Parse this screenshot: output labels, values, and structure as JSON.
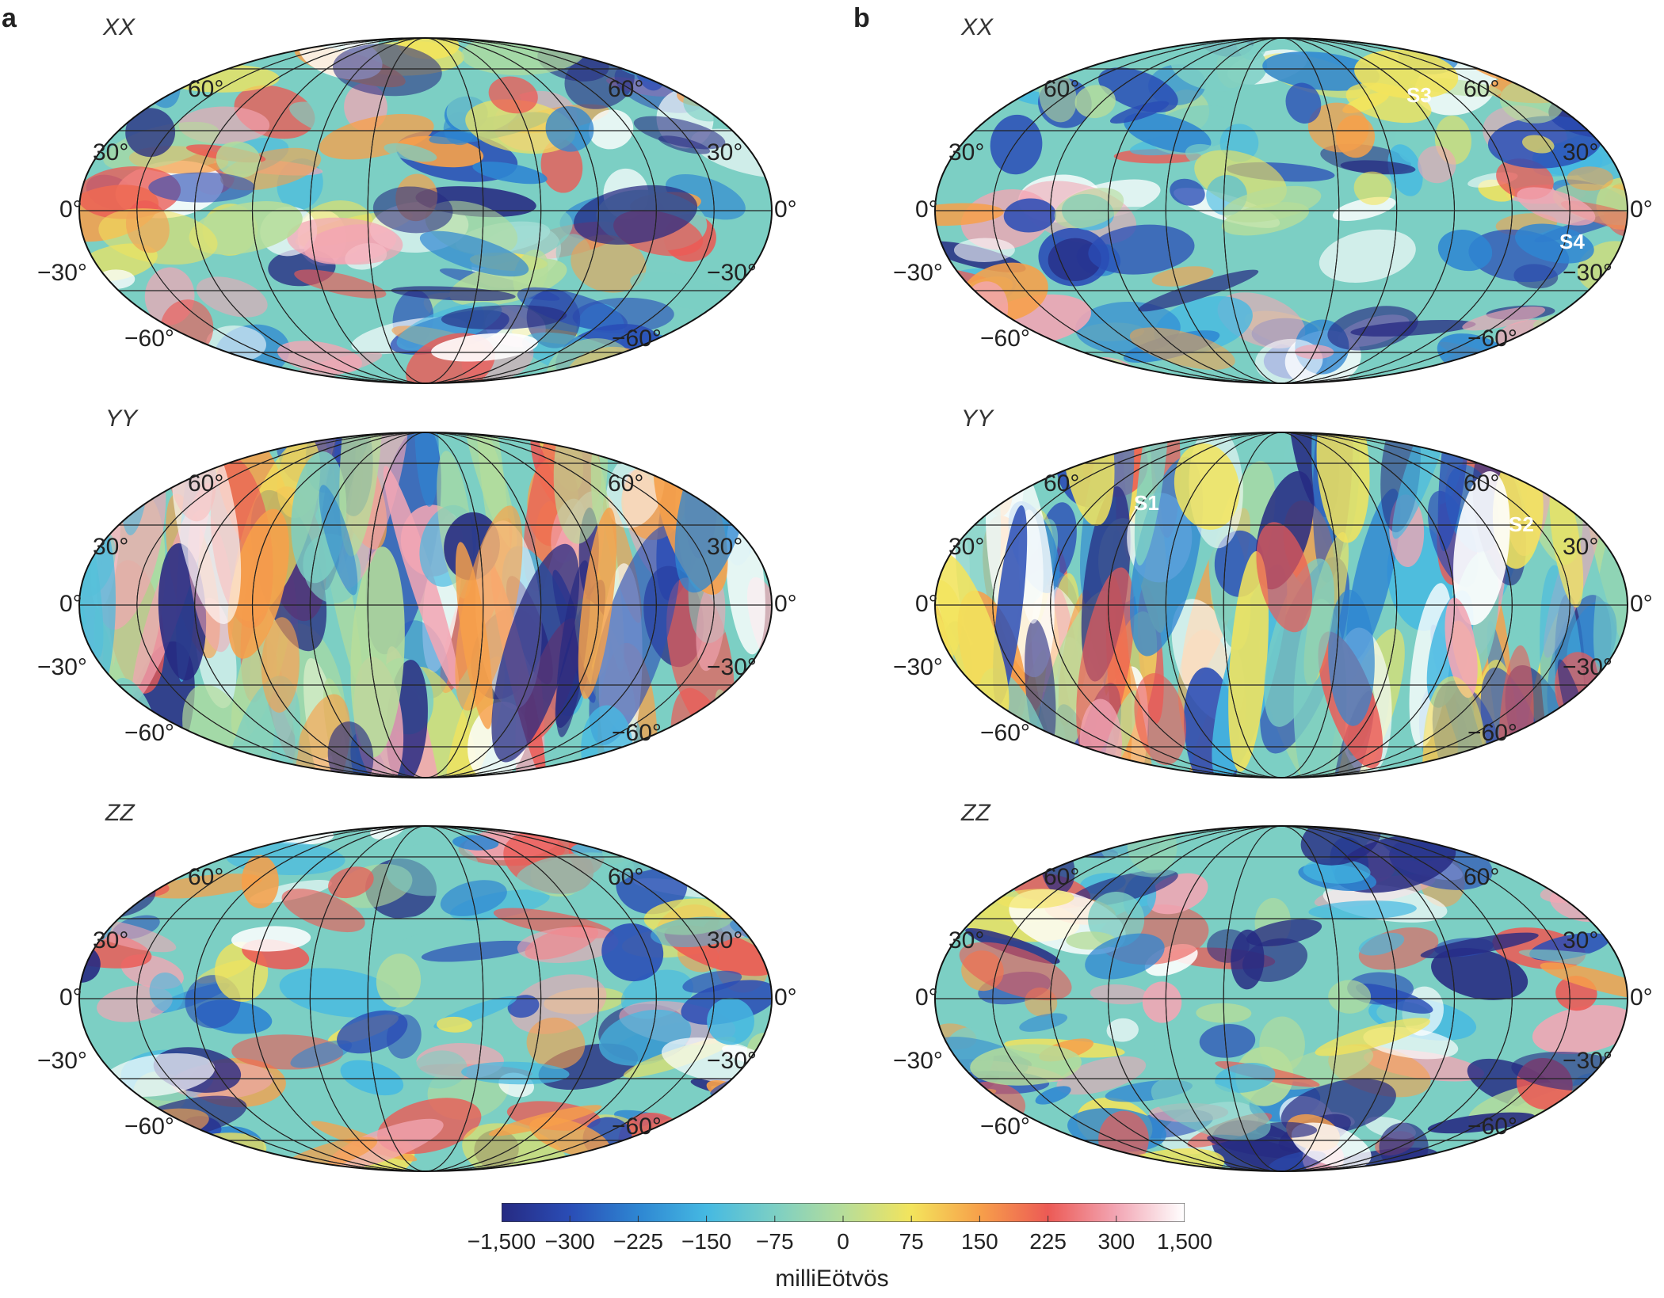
{
  "panel_labels": {
    "a": "a",
    "b": "b"
  },
  "component_labels": {
    "xx": "XX",
    "yy": "YY",
    "zz": "ZZ"
  },
  "lat_labels": {
    "n60": "60°",
    "n30": "30°",
    "eq": "0°",
    "s30": "−30°",
    "s60": "−60°"
  },
  "markers": {
    "s1": "S1",
    "s2": "S2",
    "s3": "S3",
    "s4": "S4"
  },
  "colorbar": {
    "ticks": [
      "−1,500",
      "−300",
      "−225",
      "−150",
      "−75",
      "0",
      "75",
      "150",
      "225",
      "300",
      "1,500"
    ],
    "title": "milliEötvös",
    "stops": [
      "#262a82",
      "#2a4db6",
      "#2e86d2",
      "#45b9e2",
      "#7ccfc4",
      "#b6dd9a",
      "#f3e45c",
      "#f7a04a",
      "#ec5a55",
      "#f2a6b4",
      "#ffffff"
    ]
  }
}
